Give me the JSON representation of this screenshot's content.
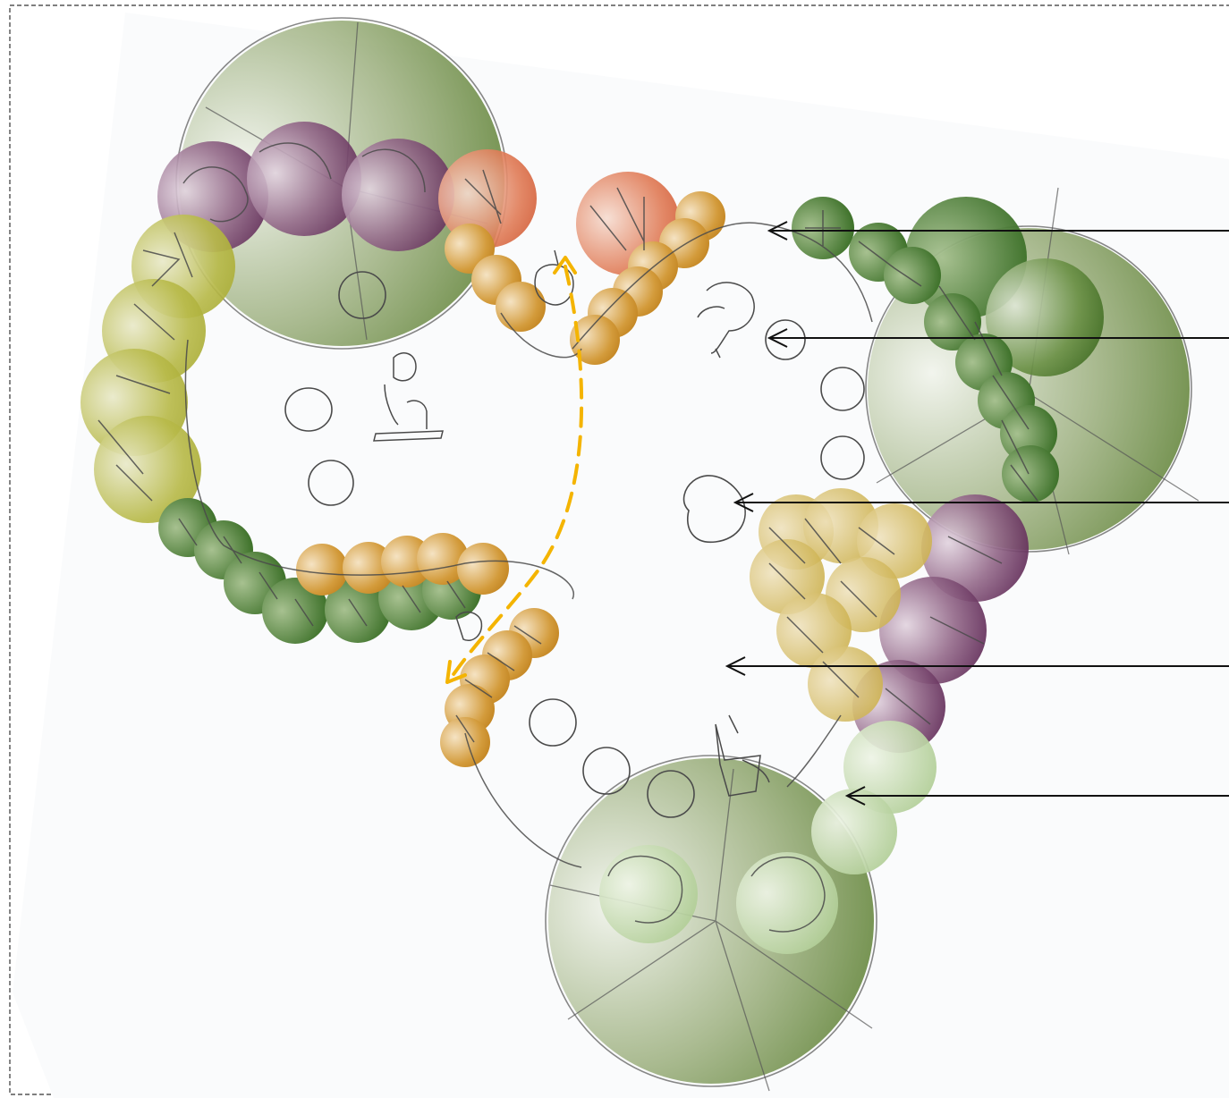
{
  "diagram": {
    "colors": {
      "frame_border": "#333333",
      "paper": "#fafbfc",
      "sketch_line": "#4a4a4a",
      "path_arrow": "#f4b400",
      "large_tree": "#6f8f4a",
      "evergreen": "#3f6e20",
      "purple_shrub": "#6a2d5e",
      "yellow_green_shrub": "#b3b43c",
      "ochre_shrub": "#c9921f",
      "orange_shrub": "#d0552c",
      "pale_green_shrub": "#a9c98a",
      "khaki_shrub": "#c7a93a"
    },
    "icons": [
      "seating-bench-icon",
      "stepping-stone-icon",
      "person-figure-icon",
      "boulder-icon",
      "leader-arrow-icon"
    ]
  }
}
